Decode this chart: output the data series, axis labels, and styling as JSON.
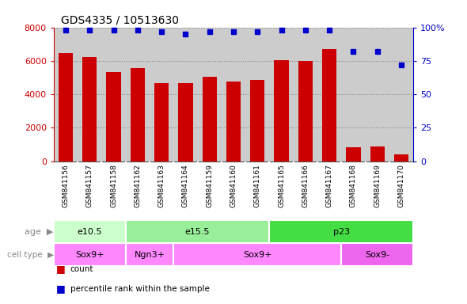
{
  "title": "GDS4335 / 10513630",
  "samples": [
    "GSM841156",
    "GSM841157",
    "GSM841158",
    "GSM841162",
    "GSM841163",
    "GSM841164",
    "GSM841159",
    "GSM841160",
    "GSM841161",
    "GSM841165",
    "GSM841166",
    "GSM841167",
    "GSM841168",
    "GSM841169",
    "GSM841170"
  ],
  "counts": [
    6450,
    6220,
    5340,
    5560,
    4660,
    4650,
    5040,
    4780,
    4850,
    6050,
    6000,
    6700,
    820,
    870,
    400
  ],
  "percentile": [
    98,
    98,
    98,
    98,
    97,
    95,
    97,
    97,
    97,
    98,
    98,
    98,
    82,
    82,
    72
  ],
  "bar_color": "#cc0000",
  "dot_color": "#0000cc",
  "ylim_left": [
    0,
    8000
  ],
  "ylim_right": [
    0,
    100
  ],
  "yticks_left": [
    0,
    2000,
    4000,
    6000,
    8000
  ],
  "yticks_right": [
    0,
    25,
    50,
    75,
    100
  ],
  "age_groups": [
    {
      "label": "e10.5",
      "start": 0,
      "end": 3,
      "color": "#ccffcc"
    },
    {
      "label": "e15.5",
      "start": 3,
      "end": 9,
      "color": "#99ee99"
    },
    {
      "label": "p23",
      "start": 9,
      "end": 15,
      "color": "#44dd44"
    }
  ],
  "cell_groups": [
    {
      "label": "Sox9+",
      "start": 0,
      "end": 3,
      "color": "#ff88ff"
    },
    {
      "label": "Ngn3+",
      "start": 3,
      "end": 5,
      "color": "#ff88ff"
    },
    {
      "label": "Sox9+",
      "start": 5,
      "end": 12,
      "color": "#ff88ff"
    },
    {
      "label": "Sox9-",
      "start": 12,
      "end": 15,
      "color": "#ee66ee"
    }
  ],
  "bg_color": "#ffffff",
  "tick_area_color": "#cccccc",
  "grid_color": "#888888",
  "title_fontsize": 10,
  "bar_color_left": "#cc0000",
  "dot_color_right": "#0000cc",
  "legend_items": [
    {
      "color": "#cc0000",
      "label": "count"
    },
    {
      "color": "#0000cc",
      "label": "percentile rank within the sample"
    }
  ]
}
